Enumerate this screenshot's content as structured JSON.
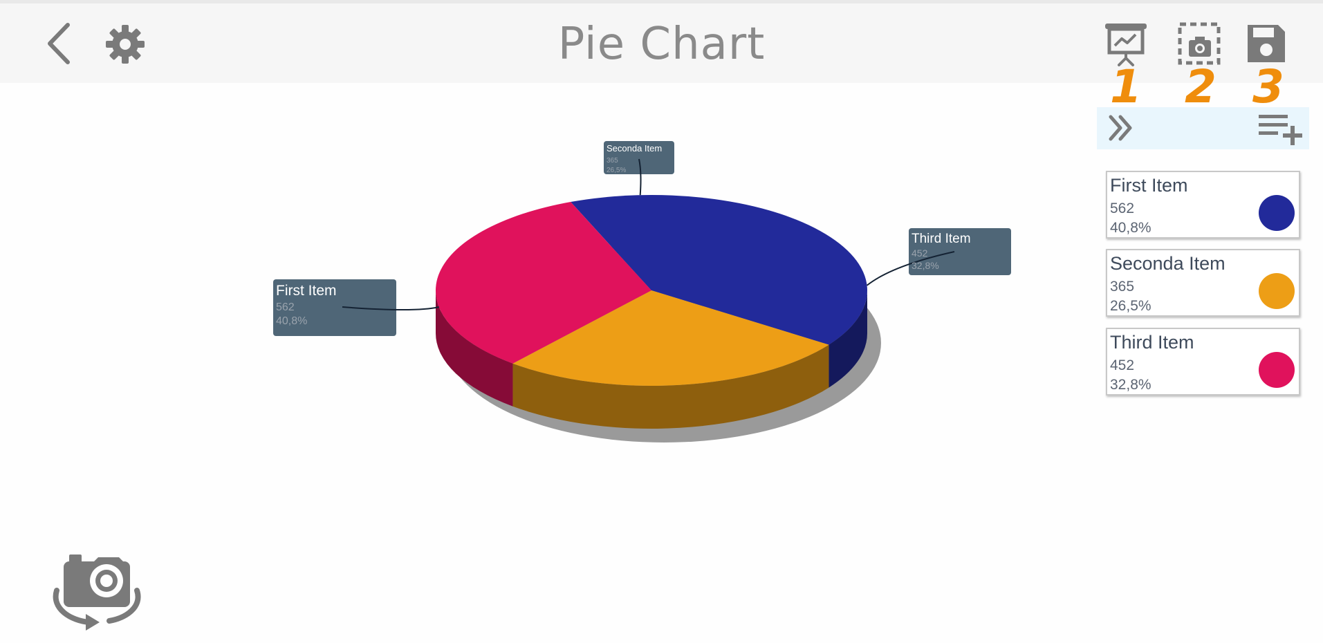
{
  "header": {
    "title": "Pie Chart",
    "tool_numbers": [
      "1",
      "2",
      "3"
    ]
  },
  "icons": {
    "back": "chevron-left-icon",
    "settings": "gear-icon",
    "presentation": "presentation-chart-icon",
    "screenshot": "screenshot-icon",
    "save": "floppy-disk-icon",
    "collapse": "double-chevron-right-icon",
    "add_item": "playlist-add-icon",
    "camera_rotate": "camera-rotate-icon"
  },
  "colors": {
    "accent_numbers": "#ef8d0c",
    "icon_gray": "#7a7a7a",
    "label_bg": "#4f6677"
  },
  "chart_data": {
    "type": "pie",
    "categories": [
      "First Item",
      "Seconda Item",
      "Third Item"
    ],
    "values": [
      562,
      365,
      452
    ],
    "percent_labels": [
      "40,8%",
      "26,5%",
      "32,8%"
    ],
    "colors": [
      "#222a9a",
      "#ed9e16",
      "#e0125c"
    ],
    "title": "Pie Chart",
    "legend": "right",
    "style": "3d"
  },
  "legend": {
    "items": [
      {
        "name": "First Item",
        "value": "562",
        "percent": "40,8%",
        "color": "#222a9a"
      },
      {
        "name": "Seconda Item",
        "value": "365",
        "percent": "26,5%",
        "color": "#ed9e16"
      },
      {
        "name": "Third Item",
        "value": "452",
        "percent": "32,8%",
        "color": "#e0125c"
      }
    ]
  }
}
